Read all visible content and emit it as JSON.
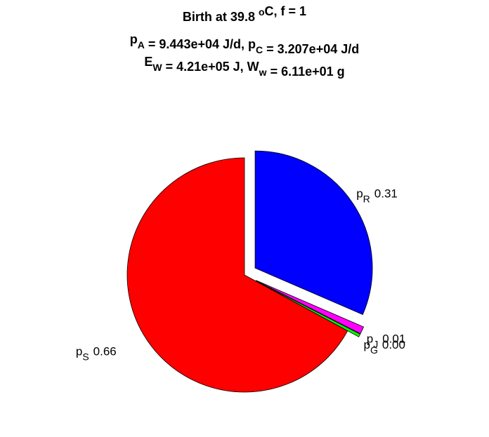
{
  "chart_data": {
    "type": "pie",
    "title_lines": [
      [
        {
          "text": "Birth at 39.8 "
        },
        {
          "sup": "o"
        },
        {
          "text": "C, f = 1"
        }
      ],
      [
        {
          "text": "p"
        },
        {
          "sub": "A"
        },
        {
          "text": " = 9.443e+04 J/d, p"
        },
        {
          "sub": "C"
        },
        {
          "text": " = 3.207e+04 J/d"
        }
      ],
      [
        {
          "text": "E"
        },
        {
          "sub": "W"
        },
        {
          "text": " = 4.21e+05 J, W"
        },
        {
          "sub": "w"
        },
        {
          "text": " = 6.11e+01 g"
        }
      ]
    ],
    "slices": [
      {
        "name": "p",
        "sub": "R",
        "value": 0.31,
        "value_label": "0.31",
        "color": "#0000ff",
        "explode": 1
      },
      {
        "name": "p",
        "sub": "J",
        "value": 0.01,
        "value_label": "0.01",
        "color": "#ff00ff",
        "explode": 1
      },
      {
        "name": "p",
        "sub": "G",
        "value": 0.004,
        "value_label": "0.00",
        "color": "#00ff00",
        "explode": 1
      },
      {
        "name": "p",
        "sub": "S",
        "value": 0.66,
        "value_label": "0.66",
        "color": "#ff0000",
        "explode": 0
      }
    ]
  }
}
